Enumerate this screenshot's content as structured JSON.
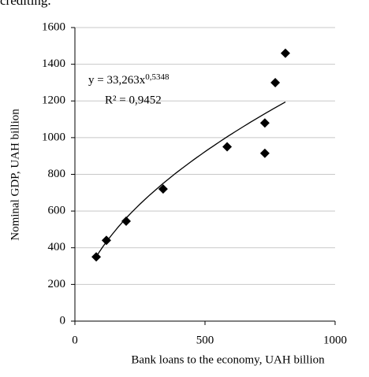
{
  "header_text": "crediting.",
  "chart_data": {
    "type": "scatter",
    "x_label": "Bank loans to the economy, UAH billion",
    "y_label": "Nominal GDP, UAH billion",
    "x": [
      82,
      121,
      197,
      339,
      585,
      730,
      730,
      770,
      809
    ],
    "values": [
      350,
      440,
      545,
      720,
      950,
      1080,
      915,
      1300,
      1460
    ],
    "color": "#000000",
    "xlim": [
      0,
      1000
    ],
    "xticks": [
      0,
      500,
      1000
    ],
    "ylim": [
      0,
      1600
    ],
    "yticks": [
      0,
      200,
      400,
      600,
      800,
      1000,
      1200,
      1400,
      1600
    ],
    "grid": true,
    "trendline": {
      "a": 33.263,
      "b": 0.5348,
      "equation": "y = 33,263x",
      "exponent": "0,5348",
      "r2": "R² = 0,9452"
    }
  }
}
